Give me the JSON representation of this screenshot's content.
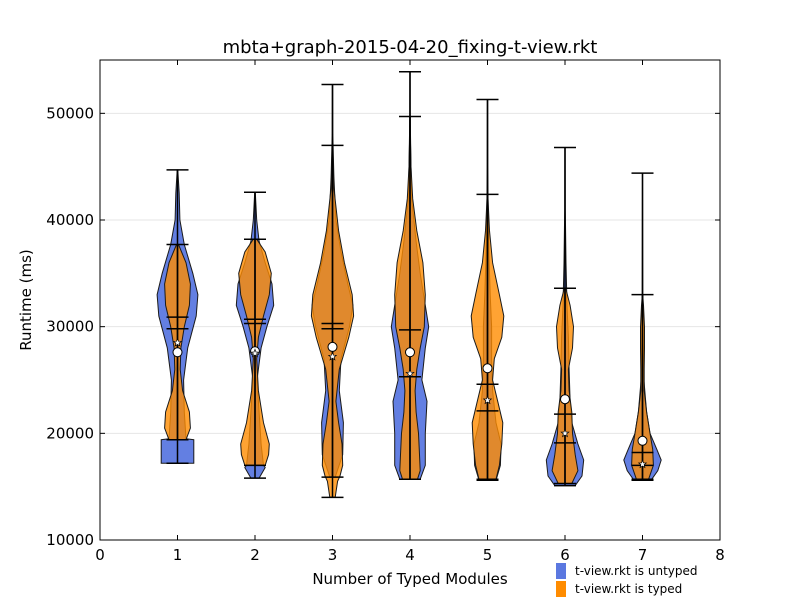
{
  "chart_data": {
    "type": "violin",
    "title": "mbta+graph-2015-04-20_fixing-t-view.rkt",
    "xlabel": "Number of Typed Modules",
    "ylabel": "Runtime (ms)",
    "xlim": [
      0,
      8
    ],
    "ylim": [
      10000,
      55000
    ],
    "x_ticks": [
      "0",
      "1",
      "2",
      "3",
      "4",
      "5",
      "6",
      "7",
      "8"
    ],
    "y_ticks": [
      "10000",
      "20000",
      "30000",
      "40000",
      "50000"
    ],
    "grid": "horizontal",
    "legend_placement": "bottom-right, outside plot",
    "series": [
      {
        "name": "t-view.rkt is untyped",
        "color": "#5b78e0",
        "marker": "circle",
        "violins": [
          {
            "x": 1,
            "min": 17200,
            "max": 44700,
            "mean": 27600,
            "median": 30900,
            "profile": [
              [
                17200,
                0.48
              ],
              [
                19400,
                0.48
              ],
              [
                19500,
                0.25
              ],
              [
                22000,
                0.2
              ],
              [
                25000,
                0.18
              ],
              [
                28000,
                0.3
              ],
              [
                31000,
                0.55
              ],
              [
                33000,
                0.6
              ],
              [
                35000,
                0.45
              ],
              [
                37700,
                0.2
              ],
              [
                40000,
                0.07
              ],
              [
                42500,
                0.05
              ],
              [
                44700,
                0.01
              ]
            ]
          },
          {
            "x": 2,
            "min": 15800,
            "max": 42600,
            "mean": 27700,
            "median": 30300,
            "profile": [
              [
                15800,
                0.12
              ],
              [
                16800,
                0.3
              ],
              [
                17000,
                0.25
              ],
              [
                19000,
                0.18
              ],
              [
                22000,
                0.12
              ],
              [
                25000,
                0.06
              ],
              [
                28000,
                0.18
              ],
              [
                30000,
                0.35
              ],
              [
                32000,
                0.55
              ],
              [
                34000,
                0.5
              ],
              [
                36000,
                0.3
              ],
              [
                38000,
                0.12
              ],
              [
                40000,
                0.05
              ],
              [
                42600,
                0.01
              ]
            ]
          },
          {
            "x": 3,
            "min": 15900,
            "max": 52700,
            "mean": 28100,
            "median": 30300,
            "profile": [
              [
                15900,
                0.08
              ],
              [
                18000,
                0.3
              ],
              [
                21000,
                0.32
              ],
              [
                24000,
                0.2
              ],
              [
                27000,
                0.25
              ],
              [
                30000,
                0.5
              ],
              [
                32000,
                0.6
              ],
              [
                34000,
                0.45
              ],
              [
                37000,
                0.25
              ],
              [
                40000,
                0.1
              ],
              [
                44000,
                0.04
              ],
              [
                48000,
                0.01
              ],
              [
                52700,
                0.005
              ]
            ]
          },
          {
            "x": 4,
            "min": 15700,
            "max": 53900,
            "mean": 27600,
            "median": 25300,
            "profile": [
              [
                15700,
                0.3
              ],
              [
                17000,
                0.45
              ],
              [
                20000,
                0.45
              ],
              [
                23000,
                0.5
              ],
              [
                25000,
                0.35
              ],
              [
                28000,
                0.45
              ],
              [
                30000,
                0.55
              ],
              [
                32000,
                0.45
              ],
              [
                35000,
                0.3
              ],
              [
                38000,
                0.18
              ],
              [
                42000,
                0.05
              ],
              [
                48000,
                0.01
              ],
              [
                53900,
                0.005
              ]
            ]
          },
          {
            "x": 5,
            "min": 15600,
            "max": 51300,
            "mean": 26100,
            "median": 22100,
            "profile": [
              [
                15600,
                0.25
              ],
              [
                17000,
                0.38
              ],
              [
                19000,
                0.4
              ],
              [
                21000,
                0.25
              ],
              [
                24000,
                0.15
              ],
              [
                27000,
                0.12
              ],
              [
                30000,
                0.12
              ],
              [
                33000,
                0.08
              ],
              [
                36000,
                0.05
              ],
              [
                40000,
                0.02
              ],
              [
                45000,
                0.01
              ],
              [
                51300,
                0.005
              ]
            ]
          },
          {
            "x": 6,
            "min": 15100,
            "max": 46800,
            "mean": 23200,
            "median": 19100,
            "profile": [
              [
                15100,
                0.3
              ],
              [
                16000,
                0.5
              ],
              [
                17500,
                0.55
              ],
              [
                19000,
                0.38
              ],
              [
                21000,
                0.2
              ],
              [
                23000,
                0.15
              ],
              [
                26000,
                0.12
              ],
              [
                29000,
                0.1
              ],
              [
                32000,
                0.06
              ],
              [
                36000,
                0.03
              ],
              [
                41000,
                0.01
              ],
              [
                46800,
                0.005
              ]
            ]
          },
          {
            "x": 7,
            "min": 15600,
            "max": 44400,
            "mean": 19300,
            "median": 17000,
            "profile": [
              [
                15600,
                0.25
              ],
              [
                16500,
                0.45
              ],
              [
                17500,
                0.55
              ],
              [
                18500,
                0.42
              ],
              [
                20000,
                0.22
              ],
              [
                22000,
                0.12
              ],
              [
                25000,
                0.04
              ],
              [
                29000,
                0.02
              ],
              [
                33000,
                0.01
              ],
              [
                38000,
                0.005
              ],
              [
                44400,
                0.003
              ]
            ]
          }
        ]
      },
      {
        "name": "t-view.rkt is typed",
        "color": "#ff8c00",
        "marker": "star",
        "violins": [
          {
            "x": 1,
            "min": 19400,
            "max": 37700,
            "mean": 28500,
            "median": 29800,
            "profile": [
              [
                19400,
                0.25
              ],
              [
                20500,
                0.38
              ],
              [
                22000,
                0.35
              ],
              [
                24000,
                0.15
              ],
              [
                26000,
                0.08
              ],
              [
                28000,
                0.1
              ],
              [
                30000,
                0.2
              ],
              [
                32000,
                0.35
              ],
              [
                34000,
                0.38
              ],
              [
                36000,
                0.25
              ],
              [
                37700,
                0.03
              ]
            ]
          },
          {
            "x": 2,
            "min": 17000,
            "max": 38200,
            "mean": 27500,
            "median": 30700,
            "profile": [
              [
                17000,
                0.3
              ],
              [
                18000,
                0.4
              ],
              [
                19000,
                0.42
              ],
              [
                21000,
                0.25
              ],
              [
                24000,
                0.1
              ],
              [
                27000,
                0.05
              ],
              [
                29000,
                0.1
              ],
              [
                31000,
                0.25
              ],
              [
                33000,
                0.42
              ],
              [
                35000,
                0.48
              ],
              [
                37000,
                0.3
              ],
              [
                38200,
                0.05
              ]
            ]
          },
          {
            "x": 3,
            "min": 14000,
            "max": 47000,
            "mean": 27200,
            "median": 29800,
            "profile": [
              [
                14000,
                0.08
              ],
              [
                15500,
                0.15
              ],
              [
                16000,
                0.22
              ],
              [
                17000,
                0.3
              ],
              [
                19000,
                0.28
              ],
              [
                21000,
                0.18
              ],
              [
                23000,
                0.1
              ],
              [
                26000,
                0.2
              ],
              [
                29000,
                0.48
              ],
              [
                31000,
                0.62
              ],
              [
                33000,
                0.58
              ],
              [
                36000,
                0.35
              ],
              [
                39000,
                0.18
              ],
              [
                43000,
                0.04
              ],
              [
                47000,
                0.005
              ]
            ]
          },
          {
            "x": 4,
            "min": 15700,
            "max": 49700,
            "mean": 25600,
            "median": 29700,
            "profile": [
              [
                15700,
                0.22
              ],
              [
                16500,
                0.3
              ],
              [
                18000,
                0.28
              ],
              [
                20000,
                0.25
              ],
              [
                22000,
                0.18
              ],
              [
                24000,
                0.15
              ],
              [
                26000,
                0.2
              ],
              [
                28000,
                0.3
              ],
              [
                30000,
                0.42
              ],
              [
                33000,
                0.45
              ],
              [
                36000,
                0.38
              ],
              [
                39000,
                0.2
              ],
              [
                42000,
                0.08
              ],
              [
                45000,
                0.03
              ],
              [
                49700,
                0.005
              ]
            ]
          },
          {
            "x": 5,
            "min": 15700,
            "max": 42400,
            "mean": 23100,
            "median": 24600,
            "profile": [
              [
                15700,
                0.25
              ],
              [
                17000,
                0.35
              ],
              [
                19000,
                0.42
              ],
              [
                21000,
                0.45
              ],
              [
                23000,
                0.3
              ],
              [
                25000,
                0.15
              ],
              [
                27000,
                0.2
              ],
              [
                29000,
                0.42
              ],
              [
                31000,
                0.48
              ],
              [
                33000,
                0.35
              ],
              [
                36000,
                0.15
              ],
              [
                39000,
                0.06
              ],
              [
                42400,
                0.01
              ]
            ]
          },
          {
            "x": 6,
            "min": 15300,
            "max": 33600,
            "mean": 20000,
            "median": 21800,
            "profile": [
              [
                15300,
                0.2
              ],
              [
                16500,
                0.38
              ],
              [
                18000,
                0.3
              ],
              [
                20000,
                0.22
              ],
              [
                22000,
                0.2
              ],
              [
                24000,
                0.12
              ],
              [
                26000,
                0.1
              ],
              [
                28000,
                0.22
              ],
              [
                30000,
                0.25
              ],
              [
                32000,
                0.15
              ],
              [
                33600,
                0.02
              ]
            ]
          },
          {
            "x": 7,
            "min": 15700,
            "max": 33000,
            "mean": 17100,
            "median": 18200,
            "profile": [
              [
                15700,
                0.18
              ],
              [
                17000,
                0.32
              ],
              [
                18500,
                0.3
              ],
              [
                20000,
                0.22
              ],
              [
                22000,
                0.12
              ],
              [
                24000,
                0.05
              ],
              [
                26000,
                0.05
              ],
              [
                28000,
                0.06
              ],
              [
                30000,
                0.06
              ],
              [
                32000,
                0.03
              ],
              [
                33000,
                0.005
              ]
            ]
          }
        ]
      }
    ]
  }
}
